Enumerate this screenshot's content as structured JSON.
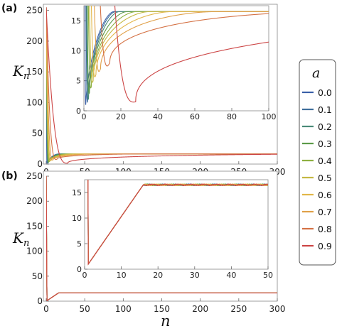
{
  "panel_labels": [
    "(a)",
    "(b)"
  ],
  "axis_titles": {
    "y": "K",
    "y_sub": "n",
    "x": "n"
  },
  "legend": {
    "title": "a",
    "entries": [
      {
        "label": "0.0",
        "color": "#3a5fa8"
      },
      {
        "label": "0.1",
        "color": "#3f6f9c"
      },
      {
        "label": "0.2",
        "color": "#4a8a78"
      },
      {
        "label": "0.3",
        "color": "#5b9a48"
      },
      {
        "label": "0.4",
        "color": "#8eb040"
      },
      {
        "label": "0.5",
        "color": "#c4b842"
      },
      {
        "label": "0.6",
        "color": "#e2b648"
      },
      {
        "label": "0.7",
        "color": "#e0a048"
      },
      {
        "label": "0.8",
        "color": "#d47144"
      },
      {
        "label": "0.9",
        "color": "#cc4444"
      }
    ]
  },
  "chart_data": [
    {
      "id": "a-main",
      "type": "line",
      "xlim": [
        0,
        300
      ],
      "ylim": [
        0,
        260
      ],
      "x_ticks": [
        "0",
        "50",
        "100",
        "150",
        "200",
        "250",
        "300"
      ],
      "y_ticks": [
        "0",
        "50",
        "100",
        "150",
        "200",
        "250"
      ],
      "plateau": 16.5,
      "series_a": [
        0.0,
        0.1,
        0.2,
        0.3,
        0.4,
        0.5,
        0.6,
        0.7,
        0.8,
        0.9
      ],
      "minima_n": [
        1,
        2,
        2.5,
        3,
        4,
        5,
        6.5,
        9,
        14,
        28
      ],
      "minima_K": [
        1,
        1.5,
        2,
        3,
        4,
        5,
        6,
        7,
        8,
        1.5
      ],
      "saturation_n": [
        16,
        17,
        19,
        23,
        28,
        35,
        47,
        70,
        130,
        400
      ],
      "peak": {
        "x": 0,
        "y": 255
      }
    },
    {
      "id": "a-inset",
      "type": "line",
      "xlim": [
        0,
        100
      ],
      "ylim": [
        0,
        17.5
      ],
      "x_ticks": [
        "0",
        "20",
        "40",
        "60",
        "80",
        "100"
      ],
      "y_ticks": [
        "0",
        "5",
        "10",
        "15"
      ]
    },
    {
      "id": "b-main",
      "type": "line",
      "xlim": [
        0,
        300
      ],
      "ylim": [
        0,
        260
      ],
      "x_ticks": [
        "0",
        "50",
        "100",
        "150",
        "200",
        "250",
        "300"
      ],
      "y_ticks": [
        "0",
        "50",
        "100",
        "150",
        "200",
        "250"
      ],
      "start": {
        "x": 0,
        "y": 250
      },
      "min": {
        "x": 1,
        "y": 1
      },
      "ramp_end": {
        "x": 16,
        "y": 16.5
      },
      "plateau": 16.5
    },
    {
      "id": "b-inset",
      "type": "line",
      "xlim": [
        0,
        50
      ],
      "ylim": [
        0,
        17.5
      ],
      "x_ticks": [
        "0",
        "10",
        "20",
        "30",
        "40",
        "50"
      ],
      "y_ticks": [
        "0",
        "5",
        "10",
        "15"
      ]
    }
  ]
}
